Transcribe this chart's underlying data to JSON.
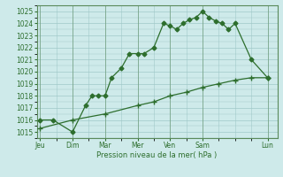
{
  "xlabel": "Pression niveau de la mer( hPa )",
  "bg_color": "#ceeaea",
  "grid_color": "#a0c8c8",
  "line_color": "#2d6e2d",
  "spine_color": "#5a8a5a",
  "ylim": [
    1014.8,
    1025.5
  ],
  "yticks": [
    1015,
    1016,
    1017,
    1018,
    1019,
    1020,
    1021,
    1022,
    1023,
    1024,
    1025
  ],
  "day_labels": [
    "Jeu",
    "Dim",
    "Mar",
    "Mer",
    "Ven",
    "Sam",
    "Lun"
  ],
  "day_positions": [
    0,
    1,
    2,
    3,
    4,
    5,
    7
  ],
  "xlim": [
    -0.1,
    7.3
  ],
  "series1_x": [
    0,
    0.4,
    1.0,
    1.4,
    1.6,
    1.8,
    2.0,
    2.2,
    2.5,
    2.75,
    3.0,
    3.2,
    3.5,
    3.8,
    4.0,
    4.2,
    4.4,
    4.6,
    4.8,
    5.0,
    5.2,
    5.4,
    5.6,
    5.8,
    6.0,
    6.5,
    7.0
  ],
  "series1_y": [
    1016.0,
    1016.0,
    1015.0,
    1017.2,
    1018.0,
    1018.0,
    1018.0,
    1019.5,
    1020.3,
    1021.5,
    1021.5,
    1021.5,
    1022.0,
    1024.0,
    1023.8,
    1023.5,
    1024.0,
    1024.3,
    1024.5,
    1025.0,
    1024.5,
    1024.2,
    1024.0,
    1023.5,
    1024.0,
    1021.0,
    1019.5
  ],
  "series2_x": [
    0,
    1.0,
    2.0,
    3.0,
    3.5,
    4.0,
    4.5,
    5.0,
    5.5,
    6.0,
    6.5,
    7.0
  ],
  "series2_y": [
    1015.3,
    1016.0,
    1016.5,
    1017.2,
    1017.5,
    1018.0,
    1018.3,
    1018.7,
    1019.0,
    1019.3,
    1019.5,
    1019.5
  ]
}
